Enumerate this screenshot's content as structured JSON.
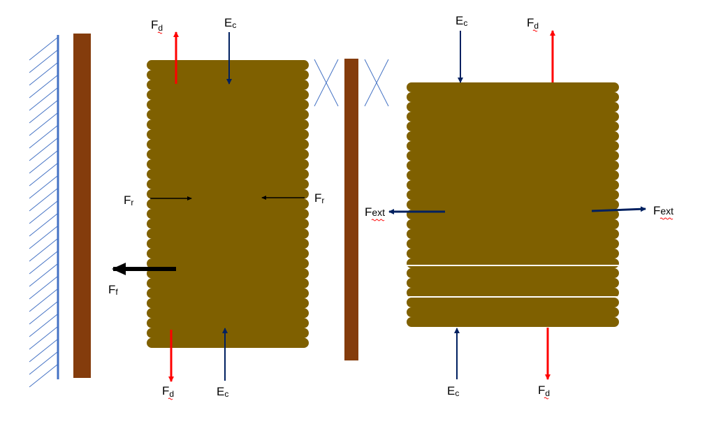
{
  "labels": {
    "fd": {
      "main": "F",
      "sub": "d"
    },
    "ec": {
      "main": "E",
      "sub": "c"
    },
    "fr": {
      "main": "F",
      "sub": "r"
    },
    "ff": {
      "main": "F",
      "sub": "f"
    },
    "fext": {
      "main": "F",
      "sub": "ext"
    }
  },
  "colors": {
    "background": "#ffffff",
    "wall_line": "#4472c4",
    "wall_hatch": "#4472c4",
    "plate": "#843c0c",
    "block": "#7f6000",
    "block_seam": "#ffffff",
    "red_arrow": "#ff0000",
    "navy_arrow": "#002060",
    "black_arrow": "#000000",
    "cross_lines": "#4472c4",
    "spellcheck_underline": "#ff0000"
  },
  "icons": {
    "arrow": "arrowhead-triangle",
    "hatch": "diagonal-hatching"
  }
}
